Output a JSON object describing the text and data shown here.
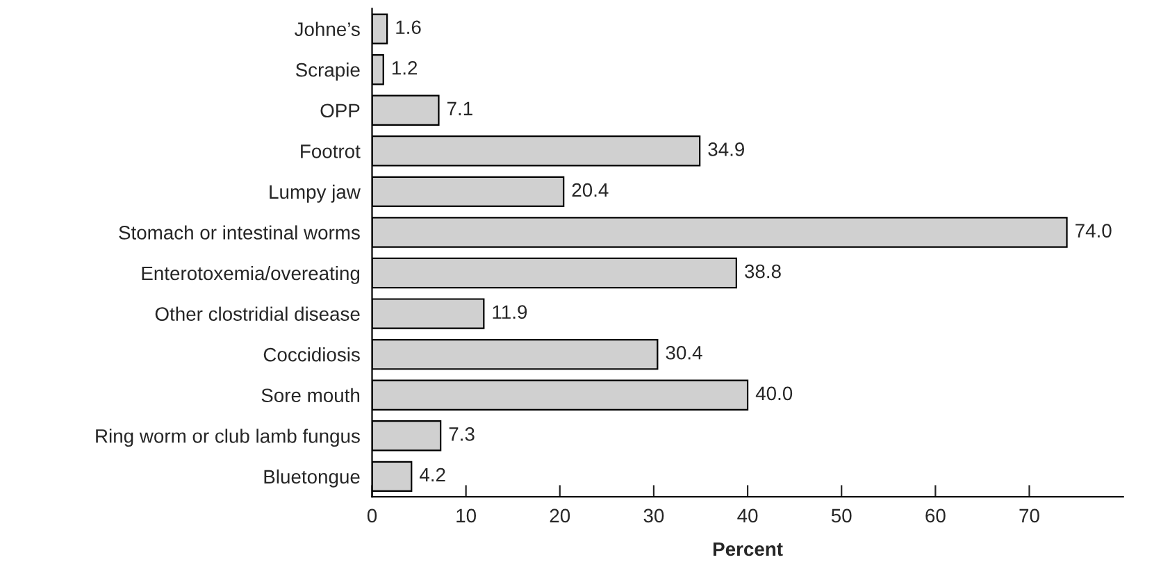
{
  "chart_data": {
    "type": "bar",
    "orientation": "horizontal",
    "xlabel": "Percent",
    "categories": [
      "Johne’s",
      "Scrapie",
      "OPP",
      "Footrot",
      "Lumpy jaw",
      "Stomach or intestinal worms",
      "Enterotoxemia/overeating",
      "Other clostridial disease",
      "Coccidiosis",
      "Sore mouth",
      "Ring worm or club lamb fungus",
      "Bluetongue"
    ],
    "values": [
      1.6,
      1.2,
      7.1,
      34.9,
      20.4,
      74.0,
      38.8,
      11.9,
      30.4,
      40.0,
      7.3,
      4.2
    ],
    "value_labels": [
      "1.6",
      "1.2",
      "7.1",
      "34.9",
      "20.4",
      "74.0",
      "38.8",
      "11.9",
      "30.4",
      "40.0",
      "7.3",
      "4.2"
    ],
    "color": "#d0d0d0",
    "xlim": [
      0,
      80
    ],
    "xticks": [
      0,
      10,
      20,
      30,
      40,
      50,
      60,
      70
    ],
    "grid": false,
    "legend": false
  }
}
